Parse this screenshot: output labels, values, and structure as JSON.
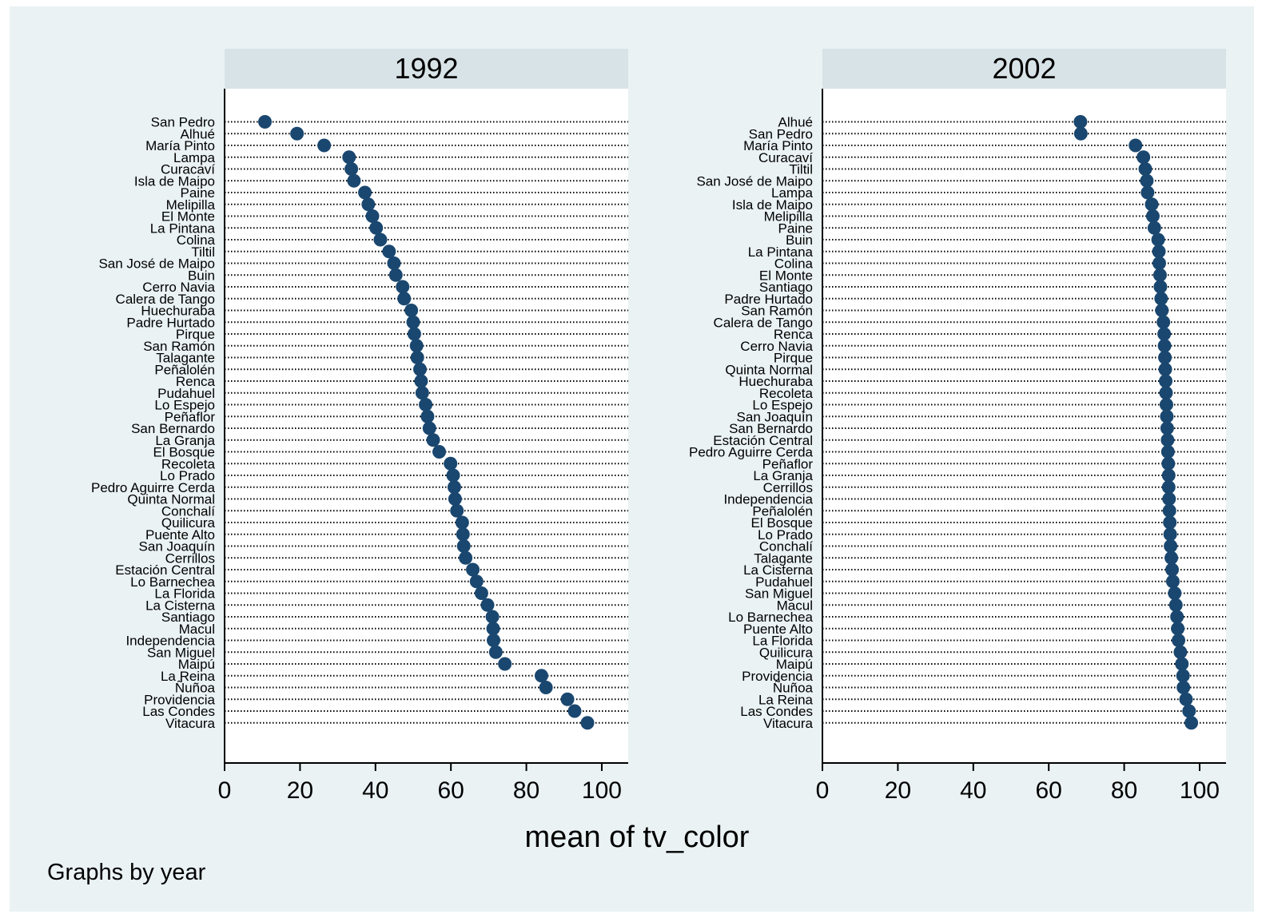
{
  "chart_data": {
    "type": "scatter",
    "subtype": "dot",
    "xlabel": "mean of tv_color",
    "note": "Graphs by year",
    "xlim": [
      0,
      107
    ],
    "xticks": [
      0,
      20,
      40,
      60,
      80,
      100
    ],
    "colors": {
      "background": "#eaf2f3",
      "strip": "#d8e3e7",
      "plot": "#ffffff",
      "marker": "#1a476f"
    },
    "panels": [
      {
        "title": "1992",
        "categories": [
          "San Pedro",
          "Alhué",
          "María Pinto",
          "Lampa",
          "Curacaví",
          "Isla de Maipo",
          "Paine",
          "Melipilla",
          "El Monte",
          "La Pintana",
          "Colina",
          "Tiltil",
          "San José de Maipo",
          "Buin",
          "Cerro Navia",
          "Calera de Tango",
          "Huechuraba",
          "Padre Hurtado",
          "Pirque",
          "San Ramón",
          "Talagante",
          "Peñalolén",
          "Renca",
          "Pudahuel",
          "Lo Espejo",
          "Peñaflor",
          "San Bernardo",
          "La Granja",
          "El Bosque",
          "Recoleta",
          "Lo Prado",
          "Pedro Aguirre Cerda",
          "Quinta Normal",
          "Conchalí",
          "Quilicura",
          "Puente Alto",
          "San Joaquín",
          "Cerrillos",
          "Estación Central",
          "Lo Barnechea",
          "La Florida",
          "La Cisterna",
          "Santiago",
          "Macul",
          "Independencia",
          "San Miguel",
          "Maipú",
          "La Reina",
          "Ñuñoa",
          "Providencia",
          "Las Condes",
          "Vitacura"
        ],
        "values": [
          10.7,
          19.2,
          26.4,
          33.0,
          33.6,
          34.3,
          37.2,
          38.1,
          39.2,
          40.2,
          41.3,
          43.6,
          44.9,
          45.4,
          47.2,
          47.6,
          49.5,
          50.0,
          50.3,
          50.9,
          51.1,
          51.8,
          52.1,
          52.4,
          53.3,
          53.8,
          54.3,
          55.3,
          56.9,
          59.9,
          60.6,
          60.9,
          61.1,
          61.6,
          63.0,
          63.2,
          63.4,
          63.9,
          65.8,
          66.8,
          68.1,
          69.7,
          71.0,
          71.2,
          71.3,
          71.9,
          74.3,
          84.0,
          85.2,
          90.9,
          92.8,
          96.2
        ]
      },
      {
        "title": "2002",
        "categories": [
          "Alhué",
          "San Pedro",
          "María Pinto",
          "Curacaví",
          "Tiltil",
          "San José de Maipo",
          "Lampa",
          "Isla de Maipo",
          "Melipilla",
          "Paine",
          "Buin",
          "La Pintana",
          "Colina",
          "El Monte",
          "Santiago",
          "Padre Hurtado",
          "San Ramón",
          "Calera de Tango",
          "Renca",
          "Cerro Navia",
          "Pirque",
          "Quinta Normal",
          "Huechuraba",
          "Recoleta",
          "Lo Espejo",
          "San Joaquín",
          "San Bernardo",
          "Estación Central",
          "Pedro Aguirre Cerda",
          "Peñaflor",
          "La Granja",
          "Cerrillos",
          "Independencia",
          "Peñalolén",
          "El Bosque",
          "Lo Prado",
          "Conchalí",
          "Talagante",
          "La Cisterna",
          "Pudahuel",
          "San Miguel",
          "Macul",
          "Lo Barnechea",
          "Puente Alto",
          "La Florida",
          "Quilicura",
          "Maipú",
          "Providencia",
          "Ñuñoa",
          "La Reina",
          "Las Condes",
          "Vitacura"
        ],
        "values": [
          68.4,
          68.5,
          83.0,
          85.1,
          85.6,
          86.0,
          86.2,
          87.3,
          87.6,
          88.0,
          89.0,
          89.2,
          89.3,
          89.5,
          89.6,
          89.8,
          90.0,
          90.4,
          90.6,
          90.7,
          90.8,
          90.9,
          91.0,
          91.1,
          91.2,
          91.3,
          91.4,
          91.5,
          91.6,
          91.7,
          91.8,
          91.8,
          91.9,
          92.0,
          92.1,
          92.2,
          92.3,
          92.5,
          92.7,
          92.9,
          93.4,
          93.7,
          94.0,
          94.2,
          94.4,
          94.9,
          95.3,
          95.6,
          95.7,
          96.4,
          97.2,
          97.8
        ]
      }
    ]
  }
}
